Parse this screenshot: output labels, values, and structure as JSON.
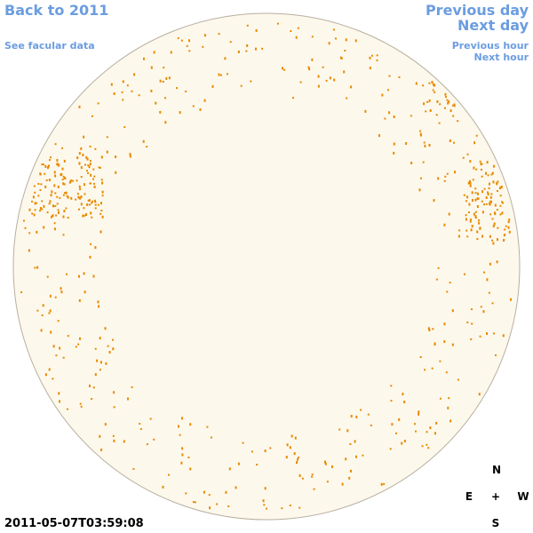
{
  "nav": {
    "back": "Back to 2011",
    "facular": "See facular data",
    "previous_day": "Previous day",
    "next_day": "Next day",
    "previous_hour": "Previous hour",
    "next_hour": "Next hour"
  },
  "timestamp": "2011-05-07T03:59:08",
  "compass": {
    "north": "N",
    "east": "E",
    "center": "+",
    "west": "W",
    "south": "S"
  }
}
